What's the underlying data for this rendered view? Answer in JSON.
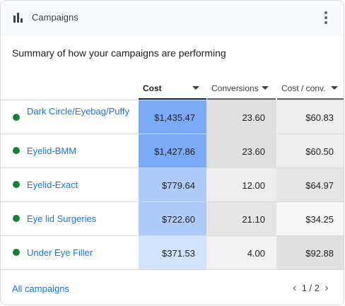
{
  "header": {
    "title": "Campaigns",
    "icon": "bar-chart-icon",
    "menu_icon": "more-vert-icon"
  },
  "summary": "Summary of how your campaigns are performing",
  "columns": [
    {
      "label": "Cost",
      "active": true
    },
    {
      "label": "Conversions",
      "active": false
    },
    {
      "label": "Cost / conv.",
      "active": false
    }
  ],
  "rows": [
    {
      "name": "Dark Circle/Eyebag/Puffy",
      "status": "active",
      "cost": "$1,435.47",
      "conversions": "23.60",
      "cost_per_conv": "$60.83"
    },
    {
      "name": "Eyelid-BMM",
      "status": "active",
      "cost": "$1,427.86",
      "conversions": "23.60",
      "cost_per_conv": "$60.50"
    },
    {
      "name": "Eyelid-Exact",
      "status": "active",
      "cost": "$779.64",
      "conversions": "12.00",
      "cost_per_conv": "$64.97"
    },
    {
      "name": "Eye lid Surgeries",
      "status": "active",
      "cost": "$722.60",
      "conversions": "21.10",
      "cost_per_conv": "$34.25"
    },
    {
      "name": "Under Eye Filler",
      "status": "active",
      "cost": "$371.53",
      "conversions": "4.00",
      "cost_per_conv": "$92.88"
    }
  ],
  "heat_colors": {
    "cost": [
      "#7baaf7",
      "#7baaf7",
      "#aecbfa",
      "#aecbfa",
      "#d2e3fc"
    ],
    "conversions": [
      "#e0e0e0",
      "#e0e0e0",
      "#eeeeee",
      "#e6e6e6",
      "#f2f2f2"
    ],
    "cost_per_conv": [
      "#eeeeee",
      "#eeeeee",
      "#e6e6e6",
      "#f6f6f6",
      "#e0e0e0"
    ]
  },
  "status_color": "#188038",
  "footer": {
    "link_label": "All campaigns",
    "page": "1 / 2",
    "prev_icon": "chevron-left-icon",
    "next_icon": "chevron-right-icon"
  }
}
